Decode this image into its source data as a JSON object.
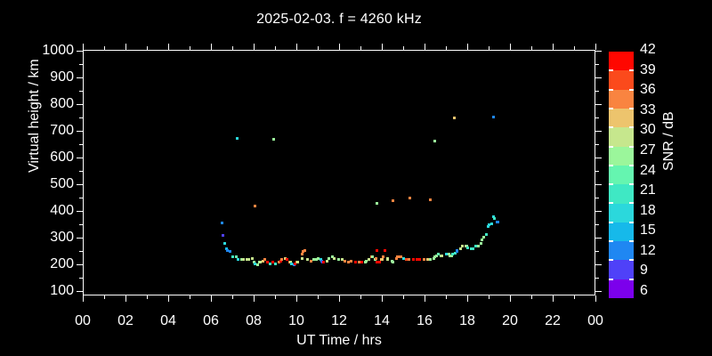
{
  "chart": {
    "title": "2025-02-03. f = 4260 kHz"
  },
  "x_axis": {
    "label": "UT Time / hrs",
    "tick_labels": [
      "00",
      "02",
      "04",
      "06",
      "08",
      "10",
      "12",
      "14",
      "16",
      "18",
      "20",
      "22",
      "00"
    ],
    "major_tick_hours": [
      0,
      2,
      4,
      6,
      8,
      10,
      12,
      14,
      16,
      18,
      20,
      22,
      24
    ],
    "minor_tick_hours": [
      1,
      3,
      5,
      7,
      9,
      11,
      13,
      15,
      17,
      19,
      21,
      23
    ],
    "range_hours": [
      0,
      24
    ]
  },
  "y_axis": {
    "label": "Virtual height / km",
    "tick_labels": [
      "100",
      "200",
      "300",
      "400",
      "500",
      "600",
      "700",
      "800",
      "900",
      "1000"
    ],
    "major_tick_km": [
      100,
      200,
      300,
      400,
      500,
      600,
      700,
      800,
      900,
      1000
    ],
    "minor_tick_km": [
      150,
      250,
      350,
      450,
      550,
      650,
      750,
      850,
      950
    ],
    "range_km": [
      100,
      1000
    ]
  },
  "colorbar": {
    "label": "SNR / dB",
    "tick_labels": [
      "42",
      "39",
      "36",
      "33",
      "30",
      "27",
      "24",
      "21",
      "18",
      "15",
      "12",
      "9",
      "6"
    ],
    "levels": [
      {
        "db": 42,
        "color": "#FF0700"
      },
      {
        "db": 39,
        "color": "#FB4A1C"
      },
      {
        "db": 36,
        "color": "#F98440"
      },
      {
        "db": 33,
        "color": "#EDC46D"
      },
      {
        "db": 30,
        "color": "#C6E78D"
      },
      {
        "db": 27,
        "color": "#9BF69B"
      },
      {
        "db": 24,
        "color": "#65F5B0"
      },
      {
        "db": 21,
        "color": "#3FE8C4"
      },
      {
        "db": 18,
        "color": "#2BD8DC"
      },
      {
        "db": 15,
        "color": "#16B9EA"
      },
      {
        "db": 12,
        "color": "#1F87F2"
      },
      {
        "db": 9,
        "color": "#4F41F8"
      },
      {
        "db": 6,
        "color": "#7C00EC"
      }
    ]
  },
  "chart_data": {
    "type": "scatter",
    "x_unit": "UT hours",
    "y_unit": "km virtual height",
    "value_unit": "SNR dB",
    "xlim": [
      0,
      24
    ],
    "ylim": [
      100,
      1000
    ],
    "points": [
      [
        6.5,
        355,
        12
      ],
      [
        6.55,
        307,
        9
      ],
      [
        6.63,
        280,
        18
      ],
      [
        6.71,
        260,
        15
      ],
      [
        6.79,
        253,
        12
      ],
      [
        6.88,
        247,
        12
      ],
      [
        7.0,
        230,
        21
      ],
      [
        7.17,
        227,
        24
      ],
      [
        7.21,
        673,
        18
      ],
      [
        7.29,
        220,
        18
      ],
      [
        7.42,
        217,
        27
      ],
      [
        7.54,
        217,
        30
      ],
      [
        7.67,
        217,
        30
      ],
      [
        7.79,
        220,
        30
      ],
      [
        7.92,
        222,
        30
      ],
      [
        8.0,
        210,
        27
      ],
      [
        8.08,
        203,
        18
      ],
      [
        8.08,
        420,
        36
      ],
      [
        8.17,
        200,
        27
      ],
      [
        8.25,
        207,
        27
      ],
      [
        8.33,
        210,
        30
      ],
      [
        8.42,
        213,
        33
      ],
      [
        8.5,
        217,
        36
      ],
      [
        8.63,
        210,
        42
      ],
      [
        8.75,
        203,
        21
      ],
      [
        8.88,
        207,
        42
      ],
      [
        8.92,
        670,
        27
      ],
      [
        9.04,
        203,
        21
      ],
      [
        9.17,
        207,
        36
      ],
      [
        9.25,
        213,
        42
      ],
      [
        9.33,
        217,
        36
      ],
      [
        9.46,
        222,
        33
      ],
      [
        9.58,
        217,
        42
      ],
      [
        9.67,
        210,
        36
      ],
      [
        9.71,
        207,
        30
      ],
      [
        9.75,
        203,
        18
      ],
      [
        9.88,
        200,
        12
      ],
      [
        9.92,
        203,
        42
      ],
      [
        10.0,
        207,
        36
      ],
      [
        10.08,
        210,
        30
      ],
      [
        10.25,
        222,
        30
      ],
      [
        10.29,
        237,
        36
      ],
      [
        10.33,
        247,
        36
      ],
      [
        10.38,
        253,
        36
      ],
      [
        10.5,
        217,
        30
      ],
      [
        10.67,
        213,
        36
      ],
      [
        10.83,
        217,
        27
      ],
      [
        10.92,
        220,
        27
      ],
      [
        11.0,
        222,
        27
      ],
      [
        11.13,
        220,
        18
      ],
      [
        11.17,
        213,
        12
      ],
      [
        11.21,
        210,
        9
      ],
      [
        11.29,
        210,
        42
      ],
      [
        11.42,
        213,
        30
      ],
      [
        11.54,
        222,
        27
      ],
      [
        11.67,
        227,
        27
      ],
      [
        11.79,
        222,
        30
      ],
      [
        11.96,
        220,
        27
      ],
      [
        12.13,
        217,
        30
      ],
      [
        12.29,
        213,
        36
      ],
      [
        12.42,
        210,
        36
      ],
      [
        12.58,
        213,
        36
      ],
      [
        12.75,
        210,
        42
      ],
      [
        12.92,
        207,
        36
      ],
      [
        13.08,
        210,
        42
      ],
      [
        13.21,
        210,
        27
      ],
      [
        13.25,
        213,
        27
      ],
      [
        13.38,
        217,
        30
      ],
      [
        13.5,
        230,
        36
      ],
      [
        13.58,
        227,
        27
      ],
      [
        13.67,
        220,
        27
      ],
      [
        13.71,
        223,
        36
      ],
      [
        13.75,
        253,
        42
      ],
      [
        13.79,
        210,
        42
      ],
      [
        13.79,
        430,
        27
      ],
      [
        13.88,
        210,
        42
      ],
      [
        13.96,
        217,
        33
      ],
      [
        14.0,
        220,
        33
      ],
      [
        14.08,
        227,
        36
      ],
      [
        14.13,
        253,
        42
      ],
      [
        14.25,
        222,
        30
      ],
      [
        14.29,
        217,
        30
      ],
      [
        14.46,
        213,
        27
      ],
      [
        14.5,
        210,
        27
      ],
      [
        14.54,
        440,
        36
      ],
      [
        14.67,
        222,
        36
      ],
      [
        14.71,
        227,
        36
      ],
      [
        14.83,
        227,
        36
      ],
      [
        14.88,
        227,
        36
      ],
      [
        15.0,
        222,
        18
      ],
      [
        15.13,
        220,
        39
      ],
      [
        15.29,
        220,
        36
      ],
      [
        15.33,
        450,
        36
      ],
      [
        15.46,
        217,
        42
      ],
      [
        15.63,
        217,
        42
      ],
      [
        15.79,
        217,
        42
      ],
      [
        15.96,
        217,
        36
      ],
      [
        16.13,
        220,
        33
      ],
      [
        16.25,
        217,
        27
      ],
      [
        16.29,
        443,
        36
      ],
      [
        16.42,
        222,
        27
      ],
      [
        16.46,
        227,
        27
      ],
      [
        16.46,
        663,
        27
      ],
      [
        16.58,
        233,
        27
      ],
      [
        16.63,
        237,
        24
      ],
      [
        16.75,
        233,
        27
      ],
      [
        16.83,
        233,
        30
      ],
      [
        17.0,
        240,
        18
      ],
      [
        17.13,
        237,
        27
      ],
      [
        17.17,
        233,
        27
      ],
      [
        17.29,
        233,
        27
      ],
      [
        17.33,
        237,
        21
      ],
      [
        17.38,
        747,
        33
      ],
      [
        17.42,
        243,
        21
      ],
      [
        17.5,
        250,
        12
      ],
      [
        17.54,
        253,
        12
      ],
      [
        17.67,
        260,
        30
      ],
      [
        17.75,
        267,
        30
      ],
      [
        17.79,
        270,
        30
      ],
      [
        17.92,
        270,
        30
      ],
      [
        17.96,
        267,
        27
      ],
      [
        18.04,
        263,
        21
      ],
      [
        18.17,
        260,
        21
      ],
      [
        18.29,
        260,
        21
      ],
      [
        18.38,
        267,
        21
      ],
      [
        18.5,
        270,
        27
      ],
      [
        18.63,
        280,
        27
      ],
      [
        18.67,
        293,
        27
      ],
      [
        18.79,
        303,
        27
      ],
      [
        18.88,
        313,
        21
      ],
      [
        18.96,
        343,
        18
      ],
      [
        19.0,
        347,
        18
      ],
      [
        19.13,
        353,
        18
      ],
      [
        19.21,
        377,
        18
      ],
      [
        19.21,
        753,
        12
      ],
      [
        19.25,
        373,
        21
      ],
      [
        19.38,
        360,
        12
      ],
      [
        19.42,
        357,
        12
      ]
    ]
  }
}
